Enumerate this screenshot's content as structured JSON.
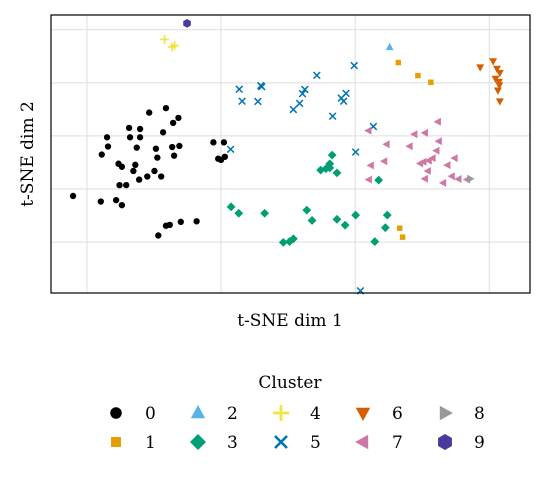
{
  "chart_data": {
    "type": "scatter",
    "title": "",
    "xlabel": "t-SNE dim 1",
    "ylabel": "t-SNE dim 2",
    "xlim": [
      0,
      100
    ],
    "ylim": [
      0,
      100
    ],
    "grid": true,
    "legend": {
      "title": "Cluster",
      "placement": "bottom-center",
      "columns": 5,
      "entries": [
        "0",
        "1",
        "2",
        "3",
        "4",
        "5",
        "6",
        "7",
        "8",
        "9"
      ]
    },
    "series": [
      {
        "name": "0",
        "color": "#000000",
        "marker": "circle",
        "points": [
          [
            4.6,
            34.9
          ],
          [
            10.4,
            32.9
          ],
          [
            10.6,
            49.8
          ],
          [
            11.7,
            56.0
          ],
          [
            11.9,
            52.7
          ],
          [
            13.6,
            33.4
          ],
          [
            14.1,
            46.5
          ],
          [
            14.3,
            38.8
          ],
          [
            14.8,
            45.4
          ],
          [
            14.8,
            31.6
          ],
          [
            15.7,
            38.8
          ],
          [
            16.3,
            59.4
          ],
          [
            16.5,
            56.0
          ],
          [
            17.2,
            43.9
          ],
          [
            17.6,
            46.1
          ],
          [
            17.9,
            52.3
          ],
          [
            18.4,
            40.8
          ],
          [
            18.6,
            56.0
          ],
          [
            18.6,
            59.0
          ],
          [
            20.1,
            41.9
          ],
          [
            20.5,
            64.9
          ],
          [
            21.6,
            43.9
          ],
          [
            21.9,
            51.9
          ],
          [
            22.2,
            48.7
          ],
          [
            22.4,
            20.7
          ],
          [
            23.0,
            41.9
          ],
          [
            23.4,
            57.8
          ],
          [
            24.0,
            66.5
          ],
          [
            24.0,
            24.2
          ],
          [
            24.8,
            24.5
          ],
          [
            25.3,
            52.5
          ],
          [
            25.5,
            61.2
          ],
          [
            25.7,
            49.4
          ],
          [
            26.6,
            63.0
          ],
          [
            26.8,
            52.9
          ],
          [
            27.1,
            25.6
          ],
          [
            30.4,
            25.8
          ],
          [
            33.9,
            54.2
          ],
          [
            34.9,
            48.3
          ],
          [
            35.5,
            47.9
          ],
          [
            36.1,
            54.2
          ],
          [
            36.3,
            49.0
          ]
        ]
      },
      {
        "name": "1",
        "color": "#e69f00",
        "marker": "square",
        "points": [
          [
            72.5,
            82.9
          ],
          [
            76.6,
            78.2
          ],
          [
            79.3,
            75.8
          ],
          [
            72.8,
            23.3
          ],
          [
            73.4,
            20.1
          ]
        ]
      },
      {
        "name": "2",
        "color": "#56b4e9",
        "marker": "triangle-up",
        "points": [
          [
            70.7,
            88.4
          ]
        ]
      },
      {
        "name": "3",
        "color": "#009e73",
        "marker": "diamond",
        "points": [
          [
            37.6,
            31.0
          ],
          [
            39.2,
            28.7
          ],
          [
            44.6,
            28.7
          ],
          [
            48.5,
            18.2
          ],
          [
            49.8,
            18.5
          ],
          [
            50.6,
            19.5
          ],
          [
            53.4,
            29.8
          ],
          [
            54.5,
            26.1
          ],
          [
            56.3,
            44.2
          ],
          [
            57.4,
            44.7
          ],
          [
            58.2,
            45.0
          ],
          [
            58.2,
            46.5
          ],
          [
            58.7,
            49.6
          ],
          [
            59.7,
            43.2
          ],
          [
            59.7,
            26.5
          ],
          [
            61.4,
            24.4
          ],
          [
            63.6,
            28.0
          ],
          [
            67.6,
            18.5
          ],
          [
            68.4,
            40.6
          ],
          [
            69.8,
            23.5
          ],
          [
            70.2,
            28.0
          ]
        ]
      },
      {
        "name": "4",
        "color": "#f0e442",
        "marker": "plus",
        "points": [
          [
            23.7,
            91.2
          ],
          [
            25.3,
            88.5
          ],
          [
            25.8,
            89.0
          ]
        ]
      },
      {
        "name": "5",
        "color": "#0072b2",
        "marker": "x",
        "points": [
          [
            37.5,
            51.7
          ],
          [
            39.3,
            73.3
          ],
          [
            39.9,
            69.0
          ],
          [
            43.2,
            68.9
          ],
          [
            43.8,
            74.6
          ],
          [
            44.0,
            74.2
          ],
          [
            50.6,
            66.0
          ],
          [
            51.9,
            68.2
          ],
          [
            52.5,
            71.7
          ],
          [
            53.0,
            73.2
          ],
          [
            55.5,
            78.3
          ],
          [
            58.8,
            63.6
          ],
          [
            60.6,
            70.1
          ],
          [
            61.1,
            69.0
          ],
          [
            61.6,
            71.8
          ],
          [
            63.3,
            81.8
          ],
          [
            63.6,
            50.7
          ],
          [
            64.6,
            0.8
          ],
          [
            67.3,
            59.9
          ]
        ]
      },
      {
        "name": "6",
        "color": "#d55e00",
        "marker": "triangle-down",
        "points": [
          [
            89.6,
            81.2
          ],
          [
            92.3,
            83.4
          ],
          [
            92.8,
            77.1
          ],
          [
            93.1,
            80.7
          ],
          [
            93.3,
            72.9
          ],
          [
            93.5,
            76.0
          ],
          [
            93.6,
            74.8
          ],
          [
            93.7,
            79.2
          ],
          [
            93.7,
            69.0
          ]
        ]
      },
      {
        "name": "7",
        "color": "#cc79a7",
        "marker": "triangle-left",
        "points": [
          [
            66.3,
            58.4
          ],
          [
            66.8,
            45.9
          ],
          [
            66.4,
            40.8
          ],
          [
            69.6,
            47.4
          ],
          [
            70.1,
            53.5
          ],
          [
            74.9,
            52.8
          ],
          [
            75.9,
            57.1
          ],
          [
            77.1,
            46.6
          ],
          [
            77.8,
            47.2
          ],
          [
            78.1,
            57.6
          ],
          [
            78.1,
            41.1
          ],
          [
            78.7,
            43.9
          ],
          [
            78.9,
            47.6
          ],
          [
            79.7,
            48.5
          ],
          [
            80.5,
            51.2
          ],
          [
            80.8,
            61.6
          ],
          [
            81.0,
            54.6
          ],
          [
            81.9,
            39.6
          ],
          [
            82.8,
            46.0
          ],
          [
            83.7,
            42.0
          ],
          [
            84.3,
            48.5
          ],
          [
            85.1,
            41.0
          ],
          [
            86.9,
            40.8
          ]
        ]
      },
      {
        "name": "8",
        "color": "#999999",
        "marker": "triangle-right",
        "points": [
          [
            87.5,
            41.1
          ]
        ]
      },
      {
        "name": "9",
        "color": "#4b3a9b",
        "marker": "hexagon",
        "points": [
          [
            28.4,
            97.0
          ]
        ]
      }
    ]
  }
}
